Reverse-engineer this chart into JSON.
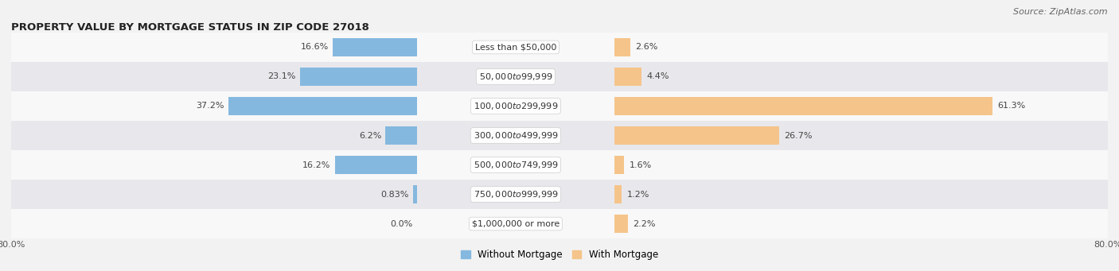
{
  "title": "PROPERTY VALUE BY MORTGAGE STATUS IN ZIP CODE 27018",
  "source": "Source: ZipAtlas.com",
  "categories": [
    "Less than $50,000",
    "$50,000 to $99,999",
    "$100,000 to $299,999",
    "$300,000 to $499,999",
    "$500,000 to $749,999",
    "$750,000 to $999,999",
    "$1,000,000 or more"
  ],
  "without_mortgage": [
    16.6,
    23.1,
    37.2,
    6.2,
    16.2,
    0.83,
    0.0
  ],
  "with_mortgage": [
    2.6,
    4.4,
    61.3,
    26.7,
    1.6,
    1.2,
    2.2
  ],
  "without_mortgage_labels": [
    "16.6%",
    "23.1%",
    "37.2%",
    "6.2%",
    "16.2%",
    "0.83%",
    "0.0%"
  ],
  "with_mortgage_labels": [
    "2.6%",
    "4.4%",
    "61.3%",
    "26.7%",
    "1.6%",
    "1.2%",
    "2.2%"
  ],
  "color_without": "#85b8df",
  "color_with": "#f5c48a",
  "xlim": 80.0,
  "bar_height": 0.62,
  "background_color": "#f2f2f2",
  "row_bg_light": "#f8f8f8",
  "row_bg_dark": "#e8e8ec",
  "title_fontsize": 9.5,
  "source_fontsize": 8,
  "label_fontsize": 8,
  "cat_fontsize": 8,
  "legend_fontsize": 8.5
}
